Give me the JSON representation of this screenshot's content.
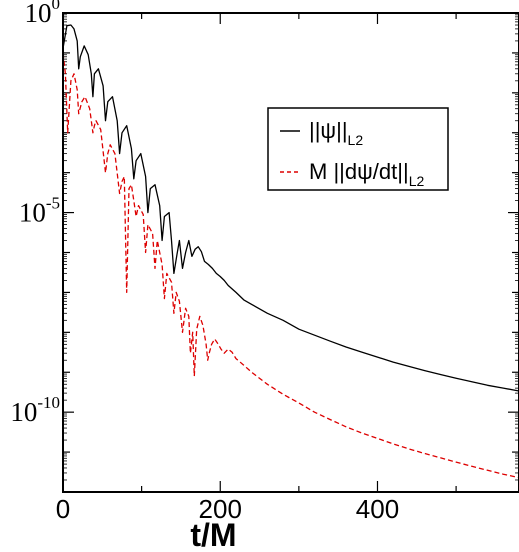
{
  "chart_data": {
    "type": "line",
    "xlabel": "t/M",
    "ylabel": "",
    "xlim": [
      0,
      580
    ],
    "ylim": [
      1e-12,
      1
    ],
    "yscale": "log",
    "grid": false,
    "xticks": [
      {
        "value": 0,
        "label": "0"
      },
      {
        "value": 200,
        "label": "200"
      },
      {
        "value": 400,
        "label": "400"
      }
    ],
    "yticks": [
      {
        "value": 1,
        "base": "10",
        "exp": "0"
      },
      {
        "value": 1e-05,
        "base": "10",
        "exp": "-5"
      },
      {
        "value": 1e-10,
        "base": "10",
        "exp": "-10"
      }
    ],
    "legend": {
      "position": "top-right",
      "entries": [
        {
          "series": 0,
          "main": "||ψ||",
          "sub": "L2"
        },
        {
          "series": 1,
          "main": "M ||dψ/dt||",
          "sub": "L2"
        }
      ]
    },
    "series": [
      {
        "name": "||ψ||L2",
        "color": "#000000",
        "style": "solid",
        "x": [
          0,
          5,
          10,
          14,
          18,
          20,
          22,
          27,
          32,
          36,
          38,
          40,
          45,
          51,
          54,
          57,
          63,
          69,
          72,
          75,
          81,
          87,
          90,
          93,
          99,
          105,
          108,
          111,
          117,
          123,
          126,
          129,
          135,
          138,
          141,
          145,
          148,
          152,
          156,
          160,
          164,
          168,
          172,
          176,
          180,
          185,
          190,
          195,
          200,
          205,
          210,
          220,
          230,
          240,
          260,
          280,
          300,
          320,
          340,
          360,
          380,
          400,
          420,
          440,
          460,
          480,
          500,
          520,
          540,
          560,
          580
        ],
        "y": [
          0.13,
          0.48,
          0.5,
          0.4,
          0.2,
          0.04,
          0.08,
          0.15,
          0.09,
          0.03,
          0.008,
          0.03,
          0.04,
          0.015,
          0.002,
          0.006,
          0.008,
          0.002,
          0.0003,
          0.001,
          0.0015,
          0.0004,
          7e-05,
          0.0002,
          0.0003,
          8e-05,
          1e-05,
          4e-05,
          5e-05,
          1.5e-05,
          2e-06,
          8e-06,
          1e-05,
          2e-06,
          3e-07,
          9e-07,
          2e-06,
          4e-07,
          1e-06,
          2e-06,
          8e-07,
          1.2e-06,
          1.4e-06,
          1.05e-06,
          6e-07,
          5e-07,
          4e-07,
          3e-07,
          2.5e-07,
          2e-07,
          1.5e-07,
          1e-07,
          6.5e-08,
          5e-08,
          3e-08,
          2e-08,
          1.2e-08,
          8.5e-09,
          6e-09,
          4.3e-09,
          3.2e-09,
          2.4e-09,
          1.8e-09,
          1.4e-09,
          1.1e-09,
          8.8e-10,
          7.1e-10,
          5.8e-10,
          4.7e-10,
          4e-10,
          3.4e-10
        ]
      },
      {
        "name": "M ||dψ/dt||L2",
        "color": "#dd0000",
        "style": "dashed",
        "x": [
          0,
          3,
          6,
          10,
          14,
          18,
          20,
          24,
          28,
          34,
          38,
          40,
          42,
          48,
          54,
          57,
          60,
          66,
          72,
          75,
          78,
          81,
          84,
          87,
          90,
          93,
          96,
          102,
          105,
          108,
          114,
          117,
          120,
          126,
          129,
          132,
          138,
          141,
          144,
          148,
          152,
          156,
          160,
          162,
          165,
          167,
          170,
          174,
          178,
          182,
          184,
          186,
          189,
          193,
          197,
          201,
          205,
          210,
          215,
          220,
          230,
          240,
          260,
          280,
          300,
          320,
          340,
          360,
          380,
          400,
          420,
          440,
          460,
          480,
          500,
          520,
          540,
          560,
          580
        ],
        "y": [
          0.1,
          0.03,
          0.001,
          0.02,
          0.03,
          0.012,
          0.003,
          0.006,
          0.008,
          0.004,
          0.001,
          0.0015,
          0.002,
          0.0012,
          0.0001,
          0.0003,
          0.0005,
          0.0003,
          3e-05,
          6e-05,
          8e-05,
          1e-07,
          4e-05,
          5e-05,
          2e-05,
          8e-06,
          1.5e-05,
          9e-06,
          1e-06,
          5e-06,
          3e-06,
          4e-07,
          2e-06,
          5e-07,
          7e-08,
          3e-07,
          1.8e-07,
          3e-08,
          1e-07,
          6e-08,
          1e-08,
          4e-08,
          2.5e-08,
          3e-09,
          1e-08,
          8e-10,
          1.2e-08,
          2.5e-08,
          1.5e-08,
          5e-09,
          2e-09,
          3e-09,
          5e-09,
          6.8e-09,
          5.2e-09,
          3.8e-09,
          3e-09,
          3.8e-09,
          3.2e-09,
          2.2e-09,
          1.5e-09,
          1e-09,
          5e-10,
          2.8e-10,
          1.7e-10,
          1e-10,
          6.5e-11,
          4.3e-11,
          3e-11,
          2.2e-11,
          1.6e-11,
          1.2e-11,
          9.2e-12,
          7.2e-12,
          5.6e-12,
          4.4e-12,
          3.5e-12,
          2.8e-12,
          2.3e-12
        ]
      }
    ]
  }
}
